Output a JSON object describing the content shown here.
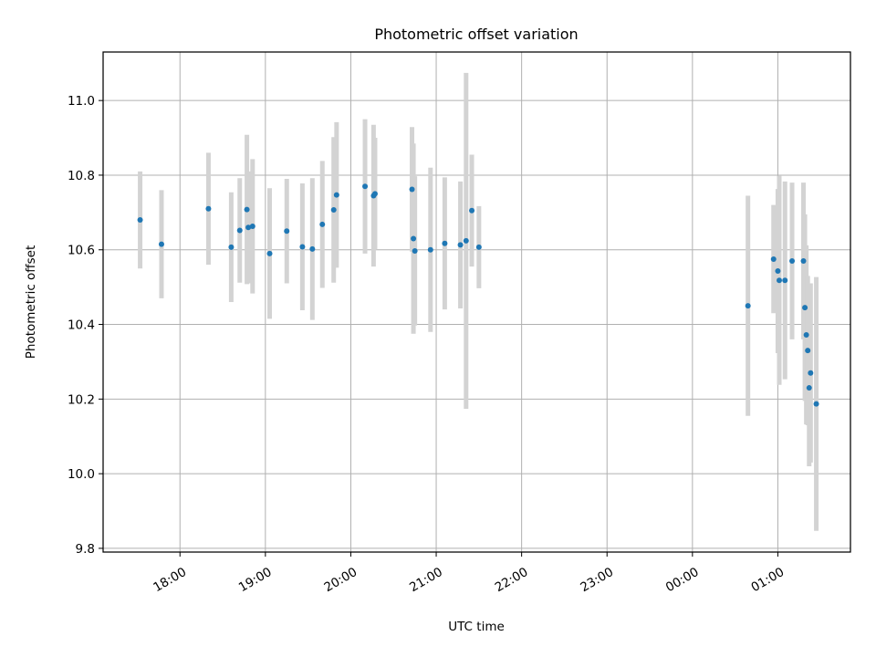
{
  "chart_data": {
    "type": "scatter",
    "title": "Photometric offset variation",
    "xlabel": "UTC time",
    "ylabel": "Photometric offset",
    "x_tick_labels": [
      "18:00",
      "19:00",
      "20:00",
      "21:00",
      "22:00",
      "23:00",
      "00:00",
      "01:00"
    ],
    "x_ticks_hours": [
      18,
      19,
      20,
      21,
      22,
      23,
      24,
      25
    ],
    "xlim_hours": [
      17.1,
      25.85
    ],
    "y_tick_labels": [
      "9.8",
      "10.0",
      "10.2",
      "10.4",
      "10.6",
      "10.8",
      "11.0"
    ],
    "y_ticks": [
      9.8,
      10.0,
      10.2,
      10.4,
      10.6,
      10.8,
      11.0
    ],
    "ylim": [
      9.79,
      11.13
    ],
    "grid": true,
    "marker_color": "#1f77b4",
    "errorbar_color": "#d3d3d3",
    "points": [
      {
        "t": "17:32",
        "y": 10.68,
        "err": 0.13
      },
      {
        "t": "17:47",
        "y": 10.615,
        "err": 0.145
      },
      {
        "t": "18:20",
        "y": 10.71,
        "err": 0.15
      },
      {
        "t": "18:36",
        "y": 10.607,
        "err": 0.147
      },
      {
        "t": "18:42",
        "y": 10.652,
        "err": 0.14
      },
      {
        "t": "18:47",
        "y": 10.708,
        "err": 0.2
      },
      {
        "t": "18:48",
        "y": 10.66,
        "err": 0.15
      },
      {
        "t": "18:51",
        "y": 10.663,
        "err": 0.18
      },
      {
        "t": "19:03",
        "y": 10.59,
        "err": 0.175
      },
      {
        "t": "19:15",
        "y": 10.65,
        "err": 0.14
      },
      {
        "t": "19:26",
        "y": 10.608,
        "err": 0.17
      },
      {
        "t": "19:33",
        "y": 10.602,
        "err": 0.19
      },
      {
        "t": "19:40",
        "y": 10.668,
        "err": 0.17
      },
      {
        "t": "19:48",
        "y": 10.707,
        "err": 0.195
      },
      {
        "t": "19:50",
        "y": 10.747,
        "err": 0.195
      },
      {
        "t": "20:10",
        "y": 10.77,
        "err": 0.18
      },
      {
        "t": "20:16",
        "y": 10.745,
        "err": 0.19
      },
      {
        "t": "20:17",
        "y": 10.75,
        "err": 0.15
      },
      {
        "t": "20:43",
        "y": 10.762,
        "err": 0.167
      },
      {
        "t": "20:44",
        "y": 10.63,
        "err": 0.255
      },
      {
        "t": "20:45",
        "y": 10.597,
        "err": 0.2
      },
      {
        "t": "20:56",
        "y": 10.6,
        "err": 0.22
      },
      {
        "t": "21:06",
        "y": 10.617,
        "err": 0.177
      },
      {
        "t": "21:17",
        "y": 10.613,
        "err": 0.17
      },
      {
        "t": "21:21",
        "y": 10.624,
        "err": 0.45
      },
      {
        "t": "21:25",
        "y": 10.705,
        "err": 0.15
      },
      {
        "t": "21:30",
        "y": 10.607,
        "err": 0.11
      },
      {
        "t": "00:39",
        "y": 10.45,
        "err": 0.295
      },
      {
        "t": "00:57",
        "y": 10.575,
        "err": 0.145
      },
      {
        "t": "01:00",
        "y": 10.543,
        "err": 0.22
      },
      {
        "t": "01:01",
        "y": 10.518,
        "err": 0.28
      },
      {
        "t": "01:05",
        "y": 10.518,
        "err": 0.265
      },
      {
        "t": "01:10",
        "y": 10.57,
        "err": 0.21
      },
      {
        "t": "01:18",
        "y": 10.57,
        "err": 0.21
      },
      {
        "t": "01:19",
        "y": 10.445,
        "err": 0.25
      },
      {
        "t": "01:20",
        "y": 10.372,
        "err": 0.24
      },
      {
        "t": "01:21",
        "y": 10.33,
        "err": 0.2
      },
      {
        "t": "01:22",
        "y": 10.23,
        "err": 0.21
      },
      {
        "t": "01:23",
        "y": 10.27,
        "err": 0.24
      },
      {
        "t": "01:27",
        "y": 10.187,
        "err": 0.34
      }
    ]
  }
}
